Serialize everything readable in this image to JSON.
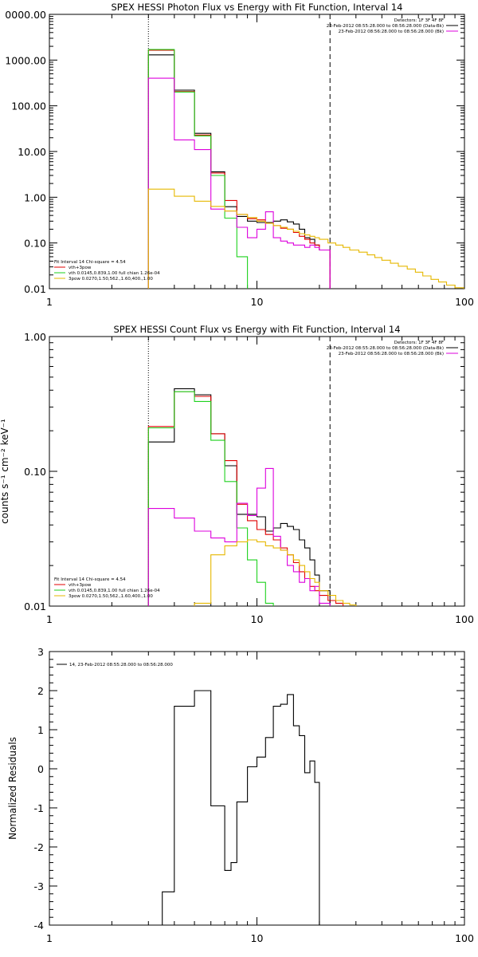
{
  "colors": {
    "black": "#000000",
    "red": "#e00000",
    "green": "#1ed21e",
    "magenta": "#dd00dd",
    "yellow": "#e6b800"
  },
  "chart_data": [
    {
      "type": "line",
      "subtype": "step",
      "title": "SPEX HESSI Photon Flux vs Energy with Fit Function, Interval 14",
      "xlabel": "",
      "ylabel": "",
      "xscale": "log",
      "yscale": "log",
      "xlim": [
        1,
        100
      ],
      "ylim": [
        0.01,
        10000
      ],
      "xticks": [
        "1",
        "10",
        "100"
      ],
      "yticks": [
        "0.01",
        "0.10",
        "1.00",
        "10.00",
        "100.00",
        "1000.00",
        "0000.00"
      ],
      "vlines": {
        "dotted": 3,
        "dashed": 22.5
      },
      "header_lines": [
        "Detectors: 1F 3F 4F 8F",
        "23-Feb-2012 08:55:28.000 to 08:56:28.000 (Data-Bk)",
        "23-Feb-2012 08:56:28.000 to 08:56:28.000 (Bk)"
      ],
      "legend_lines": [
        "Fit Interval 14   Chi-square = 4.54",
        "vth+3pow",
        "vth 0.0145,0.839,1.00  full chian 1.26e-04",
        "3pow 0.0270,1.50,562.,1.60,400.,1.00"
      ],
      "series": [
        {
          "name": "",
          "color": "black",
          "edges": [
            3,
            4,
            5,
            6,
            7,
            8,
            9,
            10,
            11,
            12,
            13,
            14,
            15,
            16,
            17,
            18,
            19,
            20,
            22.5
          ],
          "values": [
            1300,
            220,
            25,
            3.6,
            0.62,
            0.38,
            0.3,
            0.28,
            0.28,
            0.3,
            0.32,
            0.29,
            0.26,
            0.2,
            0.13,
            0.12,
            0.09,
            0.07
          ]
        },
        {
          "name": "",
          "color": "red",
          "edges": [
            3,
            4,
            5,
            6,
            7,
            8,
            9,
            10,
            11,
            12,
            13,
            14,
            15,
            16,
            17,
            18,
            19,
            20,
            22.5
          ],
          "values": [
            1650,
            205,
            23,
            3.4,
            0.85,
            0.42,
            0.34,
            0.32,
            0.27,
            0.24,
            0.21,
            0.2,
            0.17,
            0.14,
            0.12,
            0.1,
            0.09,
            0.07
          ]
        },
        {
          "name": "",
          "color": "green",
          "edges": [
            3,
            4,
            5,
            6,
            7,
            8,
            9
          ],
          "values": [
            1700,
            200,
            22,
            3.0,
            0.35,
            0.05
          ]
        },
        {
          "name": "",
          "color": "magenta",
          "edges": [
            3,
            4,
            5,
            6,
            7,
            8,
            9,
            10,
            11,
            12,
            13,
            14,
            15,
            16,
            17,
            18,
            19,
            20,
            22.5
          ],
          "values": [
            400,
            18,
            11,
            0.55,
            0.5,
            0.22,
            0.13,
            0.2,
            0.48,
            0.13,
            0.11,
            0.1,
            0.09,
            0.09,
            0.08,
            0.09,
            0.08,
            0.07
          ]
        },
        {
          "name": "",
          "color": "yellow",
          "edges": [
            3,
            4,
            5,
            6,
            7,
            8,
            9,
            10,
            11,
            12,
            13,
            14,
            15,
            16,
            17,
            18,
            19,
            20,
            22,
            24,
            26,
            28,
            31,
            34,
            37,
            40,
            44,
            48,
            53,
            58,
            63,
            69,
            75,
            82,
            90,
            99
          ],
          "values": [
            1.5,
            1.05,
            0.82,
            0.63,
            0.5,
            0.42,
            0.36,
            0.3,
            0.27,
            0.24,
            0.22,
            0.2,
            0.18,
            0.16,
            0.15,
            0.14,
            0.13,
            0.12,
            0.1,
            0.09,
            0.08,
            0.07,
            0.063,
            0.055,
            0.048,
            0.042,
            0.036,
            0.031,
            0.027,
            0.023,
            0.019,
            0.016,
            0.014,
            0.012,
            0.0105
          ]
        }
      ]
    },
    {
      "type": "line",
      "subtype": "step",
      "title": "SPEX HESSI Count Flux vs Energy with Fit Function, Interval 14",
      "xlabel": "",
      "ylabel": "counts s⁻¹ cm⁻² keV⁻¹",
      "xscale": "log",
      "yscale": "log",
      "xlim": [
        1,
        100
      ],
      "ylim": [
        0.01,
        1
      ],
      "xticks": [
        "1",
        "10",
        "100"
      ],
      "yticks": [
        "0.01",
        "0.10",
        "1.00"
      ],
      "vlines": {
        "dotted": 3,
        "dashed": 22.5
      },
      "header_lines": [
        "Detectors: 1F 3F 4F 8F",
        "23-Feb-2012 08:55:28.000 to 08:56:28.000 (Data-Bk)",
        "23-Feb-2012 08:56:28.000 to 08:56:28.000 (Bk)"
      ],
      "legend_lines": [
        "Fit Interval 14   Chi-square = 4.54",
        "vth+3pow",
        "vth 0.0145,0.839,1.00  full chian 1.26e-04",
        "3pow 0.0270,1.50,562.,1.60,400.,1.00"
      ],
      "series": [
        {
          "name": "",
          "color": "black",
          "edges": [
            3,
            4,
            5,
            6,
            7,
            8,
            9,
            10,
            11,
            12,
            13,
            14,
            15,
            16,
            17,
            18,
            19,
            20,
            22.5
          ],
          "values": [
            0.165,
            0.41,
            0.37,
            0.19,
            0.11,
            0.048,
            0.048,
            0.046,
            0.036,
            0.038,
            0.041,
            0.039,
            0.037,
            0.031,
            0.027,
            0.022,
            0.017,
            0.013
          ]
        },
        {
          "name": "",
          "color": "red",
          "edges": [
            3,
            4,
            5,
            6,
            7,
            8,
            9,
            10,
            11,
            12,
            13,
            14,
            15,
            16,
            17,
            18,
            19,
            20,
            22,
            24,
            26
          ],
          "values": [
            0.215,
            0.39,
            0.36,
            0.19,
            0.12,
            0.057,
            0.043,
            0.037,
            0.034,
            0.031,
            0.027,
            0.024,
            0.021,
            0.018,
            0.016,
            0.014,
            0.013,
            0.012,
            0.011,
            0.0105
          ]
        },
        {
          "name": "",
          "color": "green",
          "edges": [
            3,
            4,
            5,
            6,
            7,
            8,
            9,
            10,
            11,
            12
          ],
          "values": [
            0.21,
            0.39,
            0.33,
            0.17,
            0.084,
            0.038,
            0.022,
            0.015,
            0.0105
          ]
        },
        {
          "name": "",
          "color": "magenta",
          "edges": [
            3,
            4,
            5,
            6,
            7,
            8,
            9,
            10,
            11,
            12,
            13,
            14,
            15,
            16,
            17,
            18,
            19,
            20,
            22.5
          ],
          "values": [
            0.053,
            0.045,
            0.036,
            0.032,
            0.03,
            0.058,
            0.047,
            0.075,
            0.105,
            0.033,
            0.026,
            0.02,
            0.018,
            0.015,
            0.016,
            0.013,
            0.014,
            0.0105
          ]
        },
        {
          "name": "",
          "color": "yellow",
          "edges": [
            5,
            6,
            7,
            8,
            9,
            10,
            11,
            12,
            13,
            14,
            15,
            16,
            17,
            18,
            19,
            20,
            22,
            24,
            26,
            28,
            30
          ],
          "values": [
            0.0105,
            0.024,
            0.028,
            0.03,
            0.031,
            0.03,
            0.028,
            0.027,
            0.026,
            0.024,
            0.022,
            0.02,
            0.018,
            0.016,
            0.015,
            0.013,
            0.012,
            0.011,
            0.0105,
            0.0102
          ]
        }
      ]
    },
    {
      "type": "line",
      "subtype": "step",
      "title": "",
      "xlabel": "",
      "ylabel": "Normalized Residuals",
      "xscale": "log",
      "yscale": "linear",
      "xlim": [
        1,
        100
      ],
      "ylim": [
        -4,
        3
      ],
      "xticks": [
        "1",
        "10",
        "100"
      ],
      "yticks": [
        "-4",
        "-3",
        "-2",
        "-1",
        "0",
        "1",
        "2",
        "3"
      ],
      "legend_lines": [
        "14, 23-Feb-2012 08:55:28.000 to 08:56:28.000"
      ],
      "series": [
        {
          "name": "14, 23-Feb-2012 08:55:28.000 to 08:56:28.000",
          "color": "black",
          "edges": [
            3,
            3.5,
            4,
            4.5,
            5,
            6,
            7,
            7.5,
            8,
            9,
            10,
            11,
            12,
            13,
            14,
            15,
            16,
            17,
            18,
            19,
            20,
            22.5
          ],
          "values": [
            -4,
            -3.15,
            1.6,
            1.6,
            2.0,
            -0.95,
            -2.6,
            -2.4,
            -0.85,
            0.05,
            0.3,
            0.8,
            1.6,
            1.65,
            1.9,
            1.1,
            0.85,
            -0.1,
            0.2,
            -0.35,
            -4
          ]
        }
      ]
    }
  ]
}
